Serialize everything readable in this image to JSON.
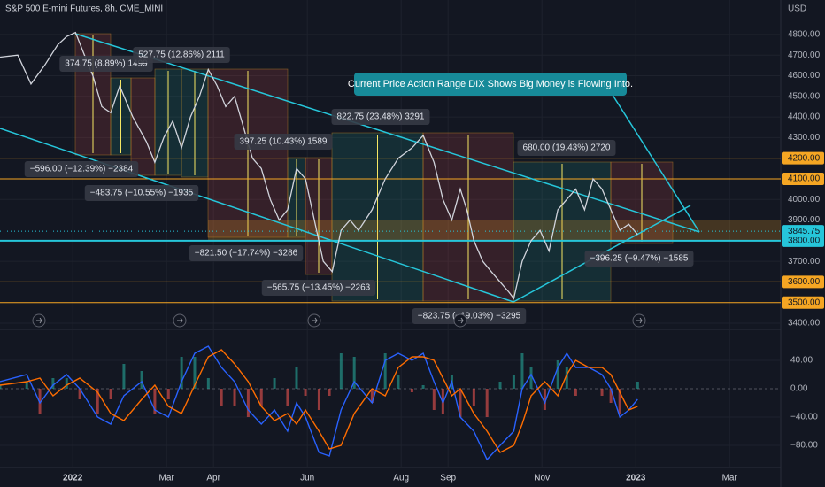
{
  "chart_data": [
    {
      "type": "line",
      "title": "S&P 500 E-mini Futures, 8h, CME_MINI",
      "axis_unit": "USD",
      "color": "#d1d4dc",
      "grid": true,
      "xlim": [
        -1.55,
        15.09
      ],
      "ylim": [
        3370,
        4967
      ],
      "yticks": [
        {
          "value": 3400,
          "label": "3400.00"
        },
        {
          "value": 3700,
          "label": "3700.00"
        },
        {
          "value": 3900,
          "label": "3900.00"
        },
        {
          "value": 4000,
          "label": "4000.00"
        },
        {
          "value": 4300,
          "label": "4300.00"
        },
        {
          "value": 4400,
          "label": "4400.00"
        },
        {
          "value": 4500,
          "label": "4500.00"
        },
        {
          "value": 4600,
          "label": "4600.00"
        },
        {
          "value": 4700,
          "label": "4700.00"
        },
        {
          "value": 4800,
          "label": "4800.00"
        }
      ],
      "x": [
        -1.55,
        -1.17,
        -0.89,
        -0.6,
        -0.32,
        -0.13,
        0.06,
        0.25,
        0.43,
        0.62,
        0.81,
        1.0,
        1.28,
        1.57,
        1.75,
        1.94,
        2.13,
        2.32,
        2.51,
        2.7,
        2.89,
        3.08,
        3.26,
        3.45,
        3.64,
        3.83,
        4.02,
        4.21,
        4.4,
        4.58,
        4.77,
        4.96,
        5.15,
        5.34,
        5.53,
        5.72,
        5.91,
        6.09,
        6.38,
        6.66,
        6.94,
        7.23,
        7.47,
        7.7,
        7.89,
        8.08,
        8.26,
        8.4,
        8.55,
        8.74,
        8.92,
        9.11,
        9.3,
        9.4,
        9.58,
        9.77,
        9.96,
        10.15,
        10.34,
        10.53,
        10.72,
        10.91,
        11.09,
        11.28,
        11.47,
        11.66,
        11.85,
        12.04
      ],
      "values": [
        4690,
        4700,
        4560,
        4650,
        4750,
        4790,
        4810,
        4700,
        4600,
        4450,
        4420,
        4550,
        4400,
        4280,
        4180,
        4300,
        4380,
        4250,
        4400,
        4500,
        4630,
        4550,
        4450,
        4500,
        4350,
        4200,
        4150,
        4000,
        3900,
        3950,
        4150,
        4100,
        3900,
        3700,
        3650,
        3850,
        3900,
        3850,
        3950,
        4100,
        4200,
        4250,
        4310,
        4180,
        4000,
        3900,
        4050,
        3950,
        3800,
        3700,
        3650,
        3600,
        3550,
        3520,
        3700,
        3800,
        3850,
        3750,
        3950,
        4000,
        4050,
        3950,
        4100,
        4050,
        3950,
        3850,
        3880,
        3830
      ],
      "levels": [
        {
          "value": 4200,
          "label": "4200.00",
          "color": "#f5a623"
        },
        {
          "value": 4100,
          "label": "4100.00",
          "color": "#f5a623"
        },
        {
          "value": 3800,
          "label": "3800.00",
          "color": "#26c6da"
        },
        {
          "value": 3600,
          "label": "3600.00",
          "color": "#f5a623"
        },
        {
          "value": 3500,
          "label": "3500.00",
          "color": "#f5a623"
        }
      ],
      "last_price": {
        "value": 3845.75,
        "label": "3845.75",
        "color": "#26c6da"
      },
      "annotations": [
        "374.75 (8.89%) 1499",
        "527.75 (12.86%) 2111",
        "822.75 (23.48%) 3291",
        "397.25 (10.43%) 1589",
        "680.00 (19.43%) 2720",
        "−596.00 (−12.39%) −2384",
        "−483.75 (−10.55%) −1935",
        "−821.50 (−17.74%) −3286",
        "−565.75 (−13.45%) −2263",
        "−823.75 (−19.03%) −3295",
        "−396.25 (−9.47%) −1585"
      ],
      "callout": "Current Price Action Range DIX Shows Big Money is Flowing Into."
    },
    {
      "type": "line",
      "grid": true,
      "xlim": [
        -1.55,
        15.09
      ],
      "ylim": [
        -111.25,
        76.25
      ],
      "yticks": [
        {
          "value": -80,
          "label": "−80.00"
        },
        {
          "value": -40,
          "label": "−40.00"
        },
        {
          "value": 0,
          "label": "0.00"
        },
        {
          "value": 40,
          "label": "40.00"
        }
      ],
      "xticks": [
        {
          "value": 0,
          "label": "2022"
        },
        {
          "value": 2,
          "label": "Mar"
        },
        {
          "value": 3,
          "label": "Apr"
        },
        {
          "value": 5,
          "label": "Jun"
        },
        {
          "value": 7,
          "label": "Aug"
        },
        {
          "value": 8,
          "label": "Sep"
        },
        {
          "value": 10,
          "label": "Nov"
        },
        {
          "value": 12,
          "label": "2023"
        },
        {
          "value": 14,
          "label": "Mar"
        }
      ],
      "x": [
        -1.55,
        -0.98,
        -0.7,
        -0.42,
        -0.13,
        0.15,
        0.53,
        0.81,
        1.09,
        1.47,
        1.75,
        2.04,
        2.32,
        2.6,
        2.89,
        3.17,
        3.45,
        3.74,
        4.02,
        4.3,
        4.58,
        4.77,
        4.96,
        5.25,
        5.47,
        5.72,
        6.0,
        6.38,
        6.66,
        6.94,
        7.23,
        7.47,
        7.7,
        7.89,
        8.08,
        8.26,
        8.55,
        8.83,
        9.11,
        9.4,
        9.58,
        9.77,
        10.06,
        10.34,
        10.53,
        10.72,
        11.0,
        11.28,
        11.47,
        11.66,
        11.85,
        12.04
      ],
      "series": [
        {
          "color": "#2962ff",
          "values": [
            10,
            20,
            -20,
            5,
            20,
            0,
            -40,
            -50,
            -10,
            10,
            -30,
            -40,
            10,
            50,
            60,
            30,
            10,
            -30,
            -50,
            -30,
            -60,
            -20,
            -40,
            -90,
            -95,
            -30,
            10,
            -20,
            40,
            50,
            40,
            50,
            10,
            -20,
            10,
            -40,
            -60,
            -100,
            -80,
            -60,
            0,
            20,
            -20,
            30,
            50,
            30,
            30,
            20,
            0,
            -40,
            -30,
            -15
          ]
        },
        {
          "color": "#ff6d00",
          "values": [
            5,
            10,
            15,
            -10,
            5,
            15,
            -5,
            -35,
            -45,
            -15,
            5,
            -25,
            -35,
            5,
            45,
            55,
            35,
            10,
            -25,
            -45,
            -35,
            -50,
            -30,
            -60,
            -85,
            -80,
            -35,
            0,
            -10,
            30,
            45,
            45,
            40,
            15,
            -10,
            0,
            -35,
            -60,
            -90,
            -80,
            -50,
            -10,
            10,
            -10,
            20,
            40,
            30,
            30,
            20,
            -5,
            -30,
            -25
          ]
        }
      ],
      "histogram": {
        "values": [
          5,
          10,
          -35,
          15,
          15,
          -15,
          -35,
          -15,
          35,
          25,
          -35,
          -15,
          45,
          45,
          15,
          -25,
          -25,
          -40,
          -25,
          15,
          -25,
          30,
          -10,
          -30,
          -10,
          50,
          45,
          -20,
          50,
          20,
          -5,
          5,
          -30,
          -35,
          20,
          -40,
          -25,
          -40,
          10,
          20,
          50,
          30,
          -30,
          40,
          30,
          -10,
          0,
          -10,
          -20,
          -35,
          0,
          10
        ],
        "colors": [
          "#26a69a",
          "#ef5350"
        ]
      }
    }
  ]
}
